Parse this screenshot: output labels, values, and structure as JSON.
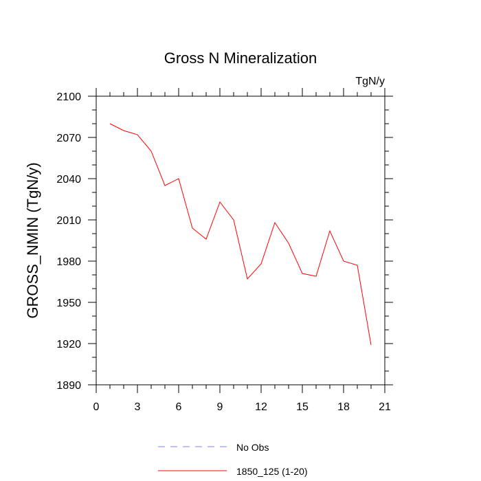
{
  "chart_data": {
    "type": "line",
    "title": "Gross N Mineralization",
    "units": "TgN/y",
    "xlabel": "",
    "ylabel": "GROSS_NMIN  (TgN/y)",
    "xlim": [
      0,
      21
    ],
    "ylim": [
      1890,
      2100
    ],
    "xticks": [
      0,
      3,
      6,
      9,
      12,
      15,
      18,
      21
    ],
    "yticks": [
      1890,
      1920,
      1950,
      1980,
      2010,
      2040,
      2070,
      2100
    ],
    "grid": false,
    "series": [
      {
        "name": "No Obs",
        "color": "#8080ff",
        "style": "dashed",
        "x": [],
        "values": []
      },
      {
        "name": "1850_125 (1-20)",
        "color": "#ff0000",
        "style": "solid",
        "x": [
          1,
          2,
          3,
          4,
          5,
          6,
          7,
          8,
          9,
          10,
          11,
          12,
          13,
          14,
          15,
          16,
          17,
          18,
          19,
          20
        ],
        "values": [
          2080,
          2075,
          2072,
          2060,
          2035,
          2040,
          2004,
          1996,
          2023,
          2010,
          1967,
          1978,
          2008,
          1993,
          1971,
          1969,
          2002,
          1980,
          1977,
          1919
        ]
      }
    ],
    "legend_position": "bottom"
  }
}
